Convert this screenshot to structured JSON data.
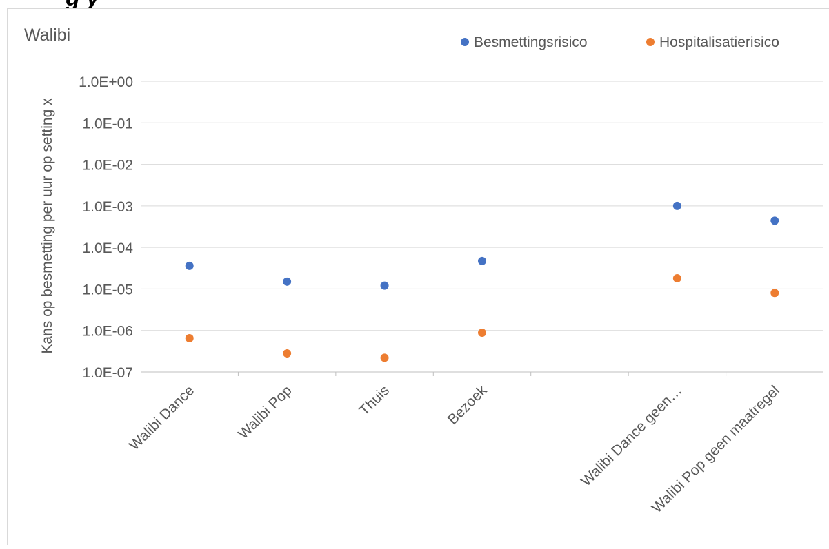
{
  "page": {
    "heading_fragment": "g          y"
  },
  "chart_data": {
    "type": "scatter",
    "title": "Walibi",
    "ylabel": "Kans op besmetting per uur op setting x",
    "xlabel": "",
    "categories": [
      "Walibi Dance",
      "Walibi Pop",
      "Thuis",
      "Bezoek",
      "",
      "Walibi Dance geen…",
      "Walibi Pop geen maatregel"
    ],
    "y_scale": "log",
    "ylim": [
      1e-07,
      1
    ],
    "y_ticks": [
      1,
      0.1,
      0.01,
      0.001,
      0.0001,
      1e-05,
      1e-06,
      1e-07
    ],
    "y_tick_labels": [
      "1.0E+00",
      "1.0E-01",
      "1.0E-02",
      "1.0E-03",
      "1.0E-04",
      "1.0E-05",
      "1.0E-06",
      "1.0E-07"
    ],
    "grid": true,
    "legend_position": "top-right",
    "series": [
      {
        "name": "Besmettingsrisico",
        "color": "#4472c4",
        "values": [
          3.6e-05,
          1.5e-05,
          1.2e-05,
          4.7e-05,
          null,
          0.001,
          0.00044
        ]
      },
      {
        "name": "Hospitalisatierisico",
        "color": "#ed7d31",
        "values": [
          6.5e-07,
          2.8e-07,
          2.2e-07,
          8.8e-07,
          null,
          1.8e-05,
          8e-06
        ]
      }
    ]
  }
}
